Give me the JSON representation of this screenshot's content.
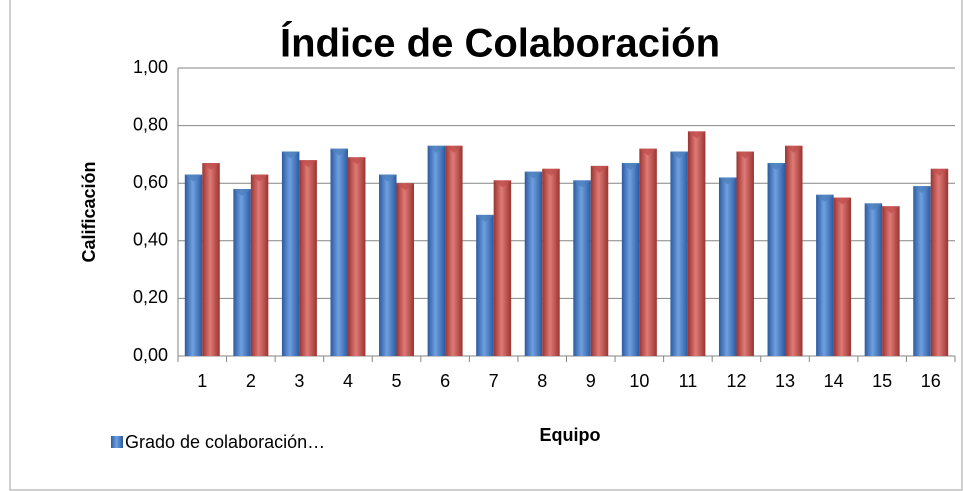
{
  "chart_data": {
    "type": "bar",
    "title": "Índice de Colaboración",
    "x_label": "Equipo",
    "y_label": "Calificación",
    "categories": [
      "1",
      "2",
      "3",
      "4",
      "5",
      "6",
      "7",
      "8",
      "9",
      "10",
      "11",
      "12",
      "13",
      "14",
      "15",
      "16"
    ],
    "series": [
      {
        "name": "Grado de colaboración…",
        "color": "#4f81bd",
        "values": [
          0.63,
          0.58,
          0.71,
          0.72,
          0.63,
          0.73,
          0.49,
          0.64,
          0.61,
          0.67,
          0.71,
          0.62,
          0.67,
          0.56,
          0.53,
          0.59
        ]
      },
      {
        "color": "#c0504d",
        "values": [
          0.67,
          0.63,
          0.68,
          0.69,
          0.6,
          0.73,
          0.61,
          0.65,
          0.66,
          0.72,
          0.78,
          0.71,
          0.73,
          0.55,
          0.52,
          0.65
        ]
      }
    ],
    "ylim": [
      0,
      1
    ],
    "yticks": [
      {
        "value": 0,
        "label": "0,00"
      },
      {
        "value": 0.2,
        "label": "0,20"
      },
      {
        "value": 0.4,
        "label": "0,40"
      },
      {
        "value": 0.6,
        "label": "0,60"
      },
      {
        "value": 0.8,
        "label": "0,80"
      },
      {
        "value": 1,
        "label": "1,00"
      }
    ],
    "grid": true,
    "legend": "bottom-left"
  }
}
